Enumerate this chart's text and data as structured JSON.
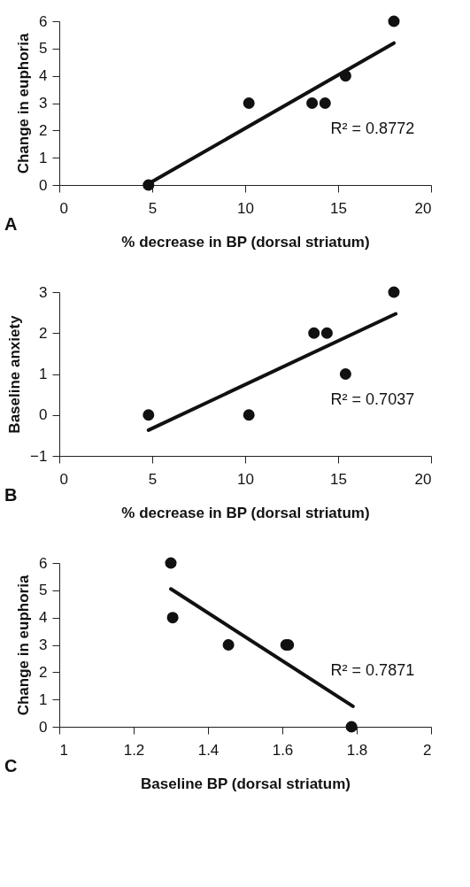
{
  "chart_data": [
    {
      "type": "scatter",
      "xlabel": "% decrease in BP (dorsal striatum)",
      "ylabel": "Change in euphoria",
      "xlim": [
        0,
        20
      ],
      "xticks": [
        0,
        5,
        10,
        15,
        20
      ],
      "ylim": [
        0,
        6
      ],
      "yticks": [
        0,
        1,
        2,
        3,
        4,
        5,
        6
      ],
      "grid": false,
      "annotations": [
        "R² = 0.8772",
        "A"
      ],
      "series": [
        {
          "marker": "circle",
          "color": "#111111",
          "x": [
            4.8,
            10.2,
            13.6,
            14.3,
            15.4,
            18.0
          ],
          "values": [
            0,
            3,
            3,
            3,
            4,
            6
          ]
        },
        {
          "type": "line",
          "marker": "none",
          "color": "#111111",
          "x": [
            4.8,
            18.0
          ],
          "values": [
            0.05,
            5.2
          ]
        }
      ]
    },
    {
      "type": "scatter",
      "xlabel": "% decrease in BP (dorsal striatum)",
      "ylabel": "Baseline anxiety",
      "xlim": [
        0,
        20
      ],
      "xticks": [
        0,
        5,
        10,
        15,
        20
      ],
      "ylim": [
        -1,
        3
      ],
      "yticks": [
        -1,
        0,
        1,
        2,
        3
      ],
      "grid": false,
      "annotations": [
        "R² = 0.7037",
        "B"
      ],
      "series": [
        {
          "marker": "circle",
          "color": "#111111",
          "x": [
            4.8,
            10.2,
            13.7,
            14.4,
            15.4,
            18.0
          ],
          "values": [
            0,
            0,
            2,
            2,
            1,
            3
          ]
        },
        {
          "type": "line",
          "marker": "none",
          "color": "#111111",
          "x": [
            4.8,
            18.1
          ],
          "values": [
            -0.37,
            2.47
          ]
        }
      ]
    },
    {
      "type": "scatter",
      "xlabel": "Baseline BP (dorsal striatum)",
      "ylabel": "Change in euphoria",
      "xlim": [
        1,
        2
      ],
      "xticks": [
        1,
        1.2,
        1.4,
        1.6,
        1.8,
        2
      ],
      "ylim": [
        0,
        6
      ],
      "yticks": [
        0,
        1,
        2,
        3,
        4,
        5,
        6
      ],
      "grid": false,
      "annotations": [
        "R² = 0.7871",
        "C"
      ],
      "series": [
        {
          "marker": "circle",
          "color": "#111111",
          "x": [
            1.3,
            1.305,
            1.455,
            1.61,
            1.616,
            1.786
          ],
          "values": [
            6,
            4,
            3,
            3,
            3,
            0
          ]
        },
        {
          "type": "line",
          "marker": "none",
          "color": "#111111",
          "x": [
            1.3,
            1.79
          ],
          "values": [
            5.05,
            0.75
          ]
        }
      ]
    }
  ]
}
